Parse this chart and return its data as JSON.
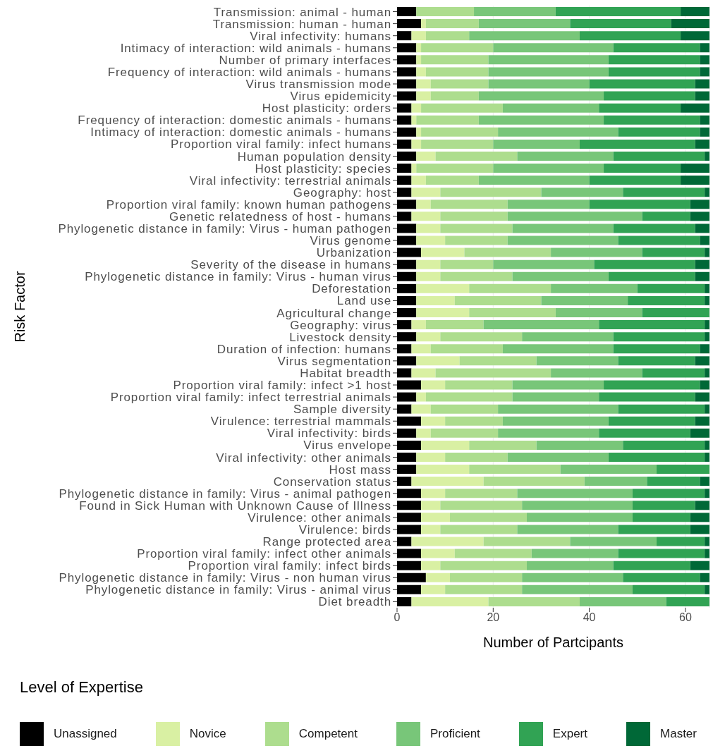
{
  "chart_data": {
    "type": "bar",
    "orientation": "horizontal",
    "stacked": true,
    "xlabel": "Number of Partcipants",
    "ylabel": "Risk Factor",
    "legend_title": "Level of Expertise",
    "legend": "bottom",
    "grid": "x",
    "xlim": [
      0,
      65
    ],
    "xticks": [
      0,
      20,
      40,
      60
    ],
    "categories": [
      "Transmission: animal - human",
      "Transmission: human - human",
      "Viral infectivity: humans",
      "Intimacy of interaction: wild animals - humans",
      "Number of primary interfaces",
      "Frequency of interaction: wild animals - humans",
      "Virus transmission mode",
      "Virus epidemicity",
      "Host plasticity: orders",
      "Frequency of interaction: domestic animals - humans",
      "Intimacy of interaction: domestic animals - humans",
      "Proportion viral family: infect humans",
      "Human population density",
      "Host plasticity: species",
      "Viral infectivity: terrestrial animals",
      "Geography: host",
      "Proportion viral family: known human pathogens",
      "Genetic relatedness of host - humans",
      "Phylogenetic distance in family: Virus - human pathogen",
      "Virus genome",
      "Urbanization",
      "Severity of the disease in humans",
      "Phylogenetic distance in family: Virus - human virus",
      "Deforestation",
      "Land use",
      "Agricultural change",
      "Geography: virus",
      "Livestock density",
      "Duration of infection: humans",
      "Virus segmentation",
      "Habitat breadth",
      "Proportion viral family: infect >1 host",
      "Proportion viral family: infect terrestrial animals",
      "Sample diversity",
      "Virulence: terrestrial mammals",
      "Viral infectivity: birds",
      "Virus envelope",
      "Viral infectivity: other animals",
      "Host mass",
      "Conservation status",
      "Phylogenetic distance in family: Virus - animal pathogen",
      "Found in Sick Human with Unknown Cause of Illness",
      "Virulence: other animals",
      "Virulence: birds",
      "Range protected area",
      "Proportion viral family: infect other animals",
      "Proportion viral family: infect birds",
      "Phylogenetic distance in family: Virus - non human virus",
      "Phylogenetic distance in family: Virus - animal virus",
      "Diet breadth"
    ],
    "series": [
      {
        "name": "Unassigned",
        "color": "#000000",
        "values": [
          4,
          5,
          3,
          4,
          4,
          4,
          4,
          4,
          3,
          3,
          4,
          3,
          4,
          3,
          3,
          3,
          4,
          3,
          4,
          4,
          5,
          4,
          4,
          4,
          4,
          4,
          3,
          4,
          3,
          4,
          3,
          5,
          4,
          3,
          5,
          4,
          5,
          4,
          4,
          3,
          5,
          5,
          5,
          5,
          3,
          5,
          5,
          6,
          5,
          3
        ]
      },
      {
        "name": "Novice",
        "color": "#d9f0a3",
        "values": [
          0,
          1,
          3,
          1,
          1,
          2,
          3,
          3,
          2,
          1,
          1,
          2,
          4,
          1,
          3,
          6,
          3,
          6,
          5,
          6,
          9,
          5,
          5,
          11,
          8,
          11,
          3,
          5,
          4,
          9,
          5,
          5,
          2,
          4,
          5,
          3,
          10,
          6,
          11,
          15,
          5,
          4,
          6,
          4,
          15,
          7,
          4,
          5,
          5,
          16
        ]
      },
      {
        "name": "Competent",
        "color": "#addd8e",
        "values": [
          12,
          11,
          9,
          15,
          14,
          13,
          12,
          10,
          17,
          13,
          16,
          15,
          17,
          16,
          11,
          21,
          16,
          14,
          15,
          13,
          18,
          11,
          15,
          17,
          18,
          18,
          12,
          17,
          15,
          16,
          24,
          14,
          18,
          14,
          12,
          14,
          14,
          13,
          19,
          21,
          15,
          17,
          16,
          16,
          18,
          16,
          18,
          15,
          16,
          19
        ]
      },
      {
        "name": "Proficient",
        "color": "#78c679",
        "values": [
          17,
          19,
          23,
          25,
          25,
          25,
          21,
          26,
          20,
          26,
          25,
          18,
          20,
          23,
          23,
          17,
          17,
          28,
          21,
          23,
          19,
          21,
          20,
          18,
          18,
          18,
          24,
          19,
          23,
          17,
          19,
          19,
          18,
          25,
          22,
          21,
          18,
          21,
          20,
          13,
          24,
          23,
          22,
          21,
          18,
          18,
          18,
          21,
          23,
          18
        ]
      },
      {
        "name": "Expert",
        "color": "#31a354",
        "values": [
          26,
          21,
          21,
          18,
          19,
          19,
          22,
          19,
          17,
          20,
          17,
          24,
          19,
          16,
          19,
          17,
          21,
          10,
          17,
          17,
          13,
          21,
          18,
          14,
          16,
          14,
          22,
          19,
          18,
          16,
          13,
          20,
          20,
          18,
          18,
          19,
          17,
          20,
          11,
          11,
          15,
          13,
          12,
          15,
          10,
          18,
          16,
          16,
          15,
          9
        ]
      },
      {
        "name": "Master",
        "color": "#006837",
        "values": [
          6,
          8,
          6,
          2,
          2,
          2,
          3,
          3,
          6,
          2,
          2,
          3,
          1,
          6,
          6,
          1,
          4,
          4,
          3,
          2,
          1,
          3,
          3,
          1,
          1,
          0,
          1,
          1,
          2,
          3,
          1,
          2,
          3,
          1,
          3,
          4,
          1,
          1,
          0,
          2,
          1,
          3,
          4,
          4,
          1,
          1,
          4,
          2,
          1,
          0
        ]
      }
    ]
  }
}
